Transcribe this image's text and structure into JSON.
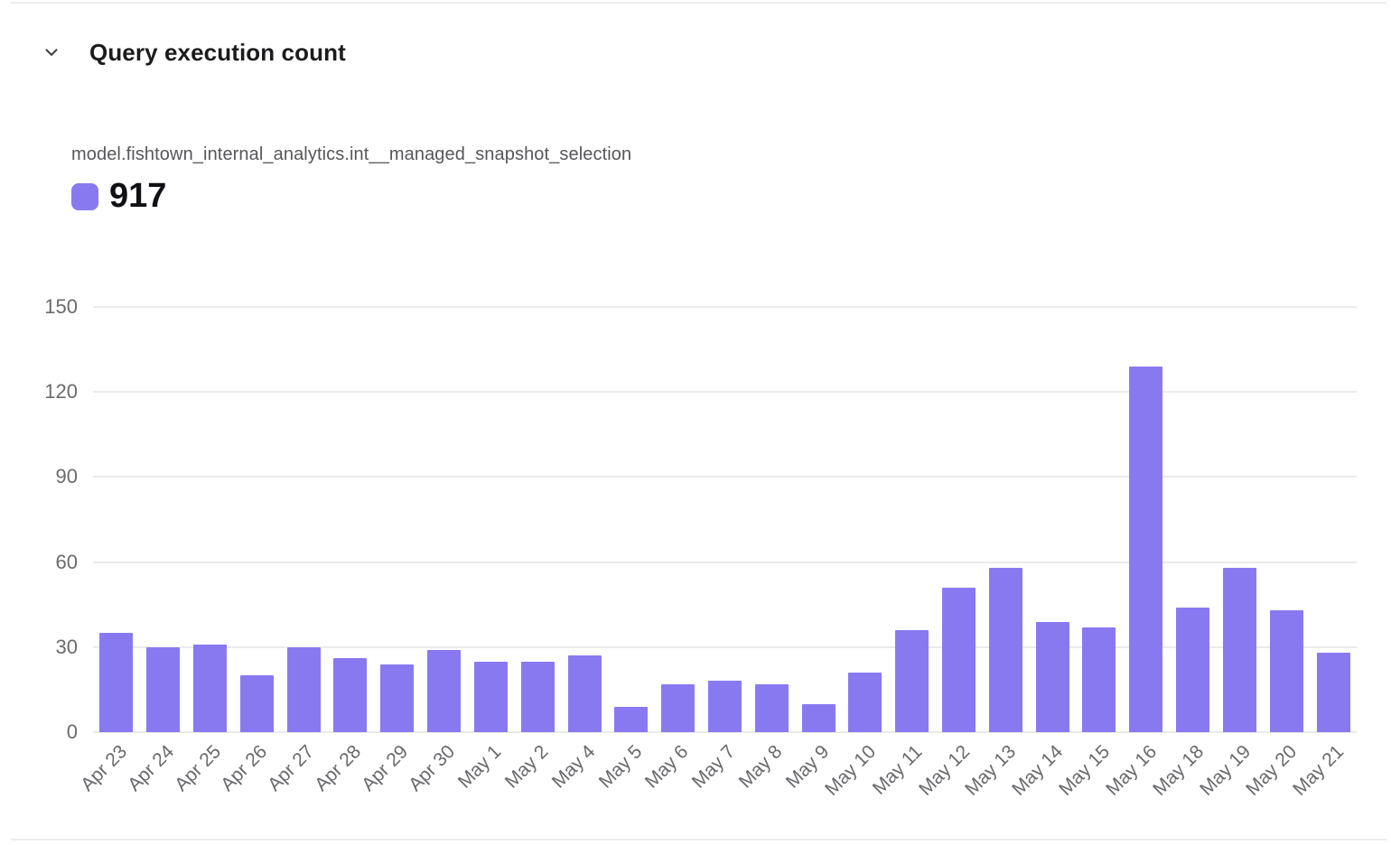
{
  "panel": {
    "title": "Query execution count"
  },
  "legend": {
    "series_name": "model.fishtown_internal_analytics.int__managed_snapshot_selection",
    "total": "917",
    "swatch_color": "#8979f1"
  },
  "colors": {
    "bar": "#8979f1",
    "gridline": "#ebebeb",
    "axis_text": "#6b6b6e",
    "title_text": "#1c1c1e",
    "series_text": "#57575b"
  },
  "icons": {
    "collapse": "chevron-down"
  },
  "chart_data": {
    "type": "bar",
    "title": "Query execution count",
    "series_name": "model.fishtown_internal_analytics.int__managed_snapshot_selection",
    "series_total": 917,
    "categories": [
      "Apr 23",
      "Apr 24",
      "Apr 25",
      "Apr 26",
      "Apr 27",
      "Apr 28",
      "Apr 29",
      "Apr 30",
      "May 1",
      "May 2",
      "May 4",
      "May 5",
      "May 6",
      "May 7",
      "May 8",
      "May 9",
      "May 10",
      "May 11",
      "May 12",
      "May 13",
      "May 14",
      "May 15",
      "May 16",
      "May 18",
      "May 19",
      "May 20",
      "May 21"
    ],
    "values": [
      35,
      30,
      31,
      20,
      30,
      26,
      24,
      29,
      25,
      25,
      27,
      9,
      17,
      18,
      17,
      10,
      21,
      36,
      51,
      58,
      39,
      37,
      129,
      44,
      58,
      43,
      28
    ],
    "xlabel": "",
    "ylabel": "",
    "ylim": [
      0,
      150
    ],
    "yticks": [
      0,
      30,
      60,
      90,
      120,
      150
    ],
    "grid": true,
    "bar_color": "#8979f1",
    "legend_position": "top-left",
    "x_tick_rotation": -45
  }
}
